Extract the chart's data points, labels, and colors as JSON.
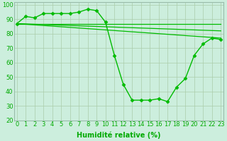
{
  "series": [
    {
      "x": [
        0,
        1,
        2,
        3,
        4,
        5,
        6,
        7,
        8,
        9,
        10,
        11,
        12,
        13,
        14,
        15,
        16,
        17,
        18,
        19,
        20,
        21,
        22,
        23
      ],
      "y": [
        87,
        92,
        91,
        94,
        94,
        94,
        94,
        95,
        97,
        96,
        88,
        65,
        45,
        34,
        34,
        34,
        35,
        33,
        43,
        49,
        65,
        73,
        77,
        76
      ],
      "color": "#00bb00",
      "linewidth": 1.0,
      "marker": "D",
      "markersize": 2.5
    },
    {
      "x": [
        0,
        23
      ],
      "y": [
        87,
        87
      ],
      "color": "#00bb00",
      "linewidth": 0.9,
      "marker": null
    },
    {
      "x": [
        0,
        23
      ],
      "y": [
        87,
        82
      ],
      "color": "#00bb00",
      "linewidth": 0.9,
      "marker": null
    },
    {
      "x": [
        0,
        23
      ],
      "y": [
        87,
        77
      ],
      "color": "#00bb00",
      "linewidth": 0.9,
      "marker": null
    }
  ],
  "xlim": [
    0,
    23
  ],
  "ylim": [
    20,
    102
  ],
  "xticks": [
    0,
    1,
    2,
    3,
    4,
    5,
    6,
    7,
    8,
    9,
    10,
    11,
    12,
    13,
    14,
    15,
    16,
    17,
    18,
    19,
    20,
    21,
    22,
    23
  ],
  "yticks": [
    20,
    30,
    40,
    50,
    60,
    70,
    80,
    90,
    100
  ],
  "xlabel": "Humidité relative (%)",
  "xlabel_color": "#00aa00",
  "xlabel_fontsize": 7.0,
  "tick_fontsize": 6.0,
  "bg_color": "#cceedd",
  "grid_color": "#aaccaa",
  "line_color": "#00aa00"
}
